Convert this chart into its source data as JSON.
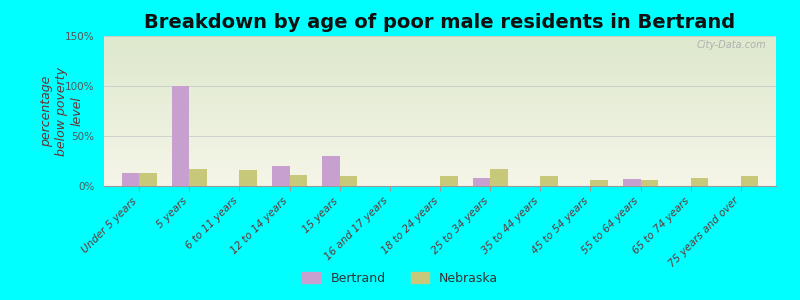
{
  "title": "Breakdown by age of poor male residents in Bertrand",
  "ylabel": "percentage\nbelow poverty\nlevel",
  "categories": [
    "Under 5 years",
    "5 years",
    "6 to 11 years",
    "12 to 14 years",
    "15 years",
    "16 and 17 years",
    "18 to 24 years",
    "25 to 34 years",
    "35 to 44 years",
    "45 to 54 years",
    "55 to 64 years",
    "65 to 74 years",
    "75 years and over"
  ],
  "bertrand_values": [
    13,
    100,
    0,
    20,
    30,
    0,
    0,
    8,
    0,
    0,
    7,
    0,
    0
  ],
  "nebraska_values": [
    13,
    17,
    16,
    11,
    10,
    0,
    10,
    17,
    10,
    6,
    6,
    8,
    10
  ],
  "bertrand_color": "#c8a0d0",
  "nebraska_color": "#c8c87a",
  "background_color_top": "#dde8cc",
  "background_color_bottom": "#f5f5e8",
  "outer_background": "#00ffff",
  "ylim": [
    0,
    150
  ],
  "yticks": [
    0,
    50,
    100,
    150
  ],
  "ytick_labels": [
    "0%",
    "50%",
    "100%",
    "150%"
  ],
  "bar_width": 0.35,
  "title_fontsize": 14,
  "axis_label_fontsize": 9,
  "tick_fontsize": 7.5,
  "legend_labels": [
    "Bertrand",
    "Nebraska"
  ],
  "watermark": "City-Data.com"
}
